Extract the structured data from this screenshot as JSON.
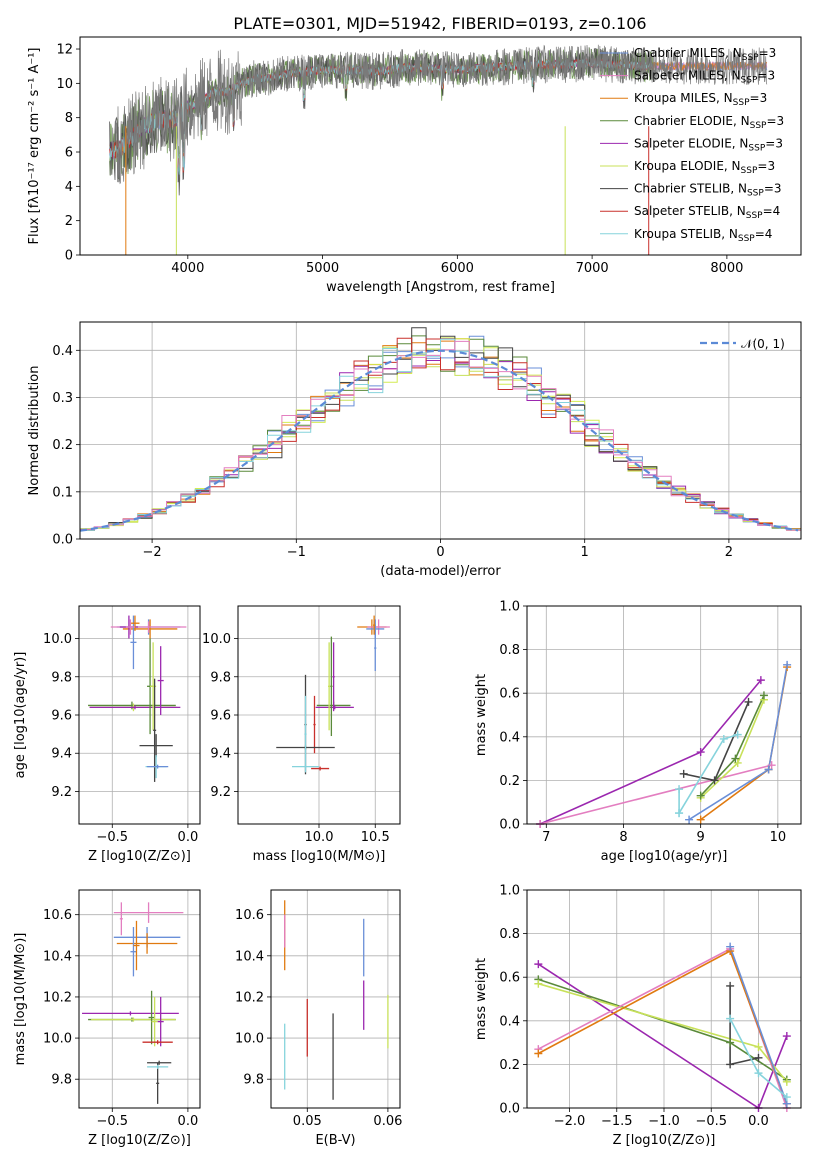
{
  "figure_title": "PLATE=0301, MJD=51942, FIBERID=0193, z=0.106",
  "colors": [
    "#6a8fd8",
    "#e07a10",
    "#c8e15a",
    "#5a8a3a",
    "#9b27af",
    "#d4ec52",
    "#444444",
    "#c9302c",
    "#86d3dc",
    "#e37ec0"
  ],
  "chart_data": [
    {
      "type": "line",
      "title": "PLATE=0301, MJD=51942, FIBERID=0193, z=0.106",
      "xlabel": "wavelength [Angstrom, rest frame]",
      "ylabel": "Flux [f_λ 10^-17 erg cm^-2 s^-1 A^-1]",
      "xlim": [
        3200,
        8550
      ],
      "ylim": [
        0,
        12.7
      ],
      "xticks": [
        "4000",
        "5000",
        "6000",
        "7000",
        "8000"
      ],
      "yticks": [
        "0",
        "2",
        "4",
        "6",
        "8",
        "10",
        "12"
      ],
      "legend": "upper right",
      "series": [
        {
          "name": "Chabrier MILES, N_SSP=3",
          "color": "#6a8fd8"
        },
        {
          "name": "Salpeter MILES, N_SSP=3",
          "color": "#e37ec0"
        },
        {
          "name": "Kroupa MILES, N_SSP=3",
          "color": "#e07a10"
        },
        {
          "name": "Chabrier ELODIE, N_SSP=3",
          "color": "#5a8a3a"
        },
        {
          "name": "Salpeter ELODIE, N_SSP=3",
          "color": "#9b27af"
        },
        {
          "name": "Kroupa ELODIE, N_SSP=3",
          "color": "#c8e15a"
        },
        {
          "name": "Chabrier STELIB, N_SSP=3",
          "color": "#444444"
        },
        {
          "name": "Salpeter STELIB, N_SSP=4",
          "color": "#c9302c"
        },
        {
          "name": "Kroupa STELIB, N_SSP=4",
          "color": "#86d3dc"
        }
      ],
      "continuum_wavelength": [
        3400,
        3500,
        3600,
        3700,
        3800,
        3900,
        4000,
        4100,
        4200,
        4300,
        4400,
        4500,
        4600,
        4700,
        4800,
        4900,
        5000,
        5200,
        5400,
        5600,
        5800,
        6000,
        6200,
        6400,
        6600,
        6800,
        7000,
        7200,
        7400
      ],
      "continuum_flux": [
        6.0,
        6.2,
        7.0,
        7.6,
        7.9,
        7.9,
        8.6,
        9.0,
        9.5,
        9.5,
        10.0,
        10.3,
        10.3,
        10.5,
        10.6,
        10.7,
        10.8,
        10.8,
        10.7,
        10.9,
        10.9,
        10.8,
        10.9,
        11.0,
        11.1,
        11.1,
        11.2,
        11.1,
        11.0
      ],
      "data_extent": [
        3380,
        8300
      ]
    },
    {
      "type": "line",
      "xlabel": "(data-model)/error",
      "ylabel": "Normed distribution",
      "xlim": [
        -2.5,
        2.5
      ],
      "ylim": [
        0,
        0.46
      ],
      "xticks": [
        "−2",
        "−1",
        "0",
        "1",
        "2"
      ],
      "yticks": [
        "0.0",
        "0.1",
        "0.2",
        "0.3",
        "0.4"
      ],
      "legend": "upper right",
      "reference_curve": {
        "name": "𝒩(0, 1)",
        "mean": 0,
        "sigma": 1,
        "color": "#5b8ad6"
      }
    },
    {
      "type": "scatter",
      "xlabel": "Z [log10(Z/Z⊙)]",
      "ylabel": "age  [log10(age/yr)]",
      "xlim": [
        -0.72,
        0.08
      ],
      "ylim": [
        9.03,
        10.17
      ],
      "xticks": [
        "−0.5",
        "0.0"
      ],
      "yticks": [
        "9.2",
        "9.4",
        "9.6",
        "9.8",
        "10.0"
      ],
      "points": [
        {
          "x": -0.26,
          "y": 10.06,
          "xerr": 0.21,
          "yerr": 0.04,
          "color": "#6a8fd8"
        },
        {
          "x": -0.25,
          "y": 10.05,
          "xerr": 0.18,
          "yerr": 0.05,
          "color": "#e07a10"
        },
        {
          "x": -0.26,
          "y": 10.06,
          "xerr": 0.25,
          "yerr": 0.03,
          "color": "#e37ec0"
        },
        {
          "x": -0.39,
          "y": 10.06,
          "xerr": 0.06,
          "yerr": 0.06,
          "color": "#9b27af"
        },
        {
          "x": -0.36,
          "y": 9.98,
          "xerr": 0.02,
          "yerr": 0.14,
          "color": "#6a8fd8"
        },
        {
          "x": -0.35,
          "y": 10.08,
          "xerr": 0.03,
          "yerr": 0.04,
          "color": "#e07a10"
        },
        {
          "x": -0.38,
          "y": 10.06,
          "xerr": 0.03,
          "yerr": 0.04,
          "color": "#e37ec0"
        },
        {
          "x": -0.37,
          "y": 9.65,
          "xerr": 0.29,
          "yerr": 0.02,
          "color": "#5a8a3a"
        },
        {
          "x": -0.36,
          "y": 9.64,
          "xerr": 0.29,
          "yerr": 0.02,
          "color": "#c8e15a"
        },
        {
          "x": -0.35,
          "y": 9.64,
          "xerr": 0.3,
          "yerr": 0.01,
          "color": "#9b27af"
        },
        {
          "x": -0.25,
          "y": 9.75,
          "xerr": 0.02,
          "yerr": 0.25,
          "color": "#5a8a3a"
        },
        {
          "x": -0.23,
          "y": 9.75,
          "xerr": 0.02,
          "yerr": 0.23,
          "color": "#c8e15a"
        },
        {
          "x": -0.18,
          "y": 9.78,
          "xerr": 0.02,
          "yerr": 0.18,
          "color": "#9b27af"
        },
        {
          "x": -0.21,
          "y": 9.44,
          "xerr": 0.11,
          "yerr": 0.06,
          "color": "#444444"
        },
        {
          "x": -0.22,
          "y": 9.52,
          "xerr": 0.01,
          "yerr": 0.27,
          "color": "#444444"
        },
        {
          "x": -0.21,
          "y": 9.33,
          "xerr": 0.07,
          "yerr": 0.06,
          "color": "#86d3dc"
        },
        {
          "x": -0.2,
          "y": 9.33,
          "xerr": 0.07,
          "yerr": 0.01,
          "color": "#6a8fd8"
        }
      ]
    },
    {
      "type": "scatter",
      "xlabel": "mass [log10(M/M⊙)]",
      "ylabel": "",
      "xlim": [
        9.28,
        10.72
      ],
      "ylim": [
        9.03,
        10.17
      ],
      "xticks": [
        "10.0",
        "10.5"
      ],
      "yticks": [
        "9.2",
        "9.4",
        "9.6",
        "9.8",
        "10.0"
      ],
      "points": [
        {
          "x": 10.47,
          "y": 10.06,
          "xerr": 0.13,
          "yerr": 0.04,
          "color": "#e07a10"
        },
        {
          "x": 10.53,
          "y": 10.06,
          "xerr": 0.1,
          "yerr": 0.04,
          "color": "#e37ec0"
        },
        {
          "x": 10.5,
          "y": 10.05,
          "xerr": 0.08,
          "yerr": 0.05,
          "color": "#6a8fd8"
        },
        {
          "x": 10.5,
          "y": 9.95,
          "xerr": 0.01,
          "yerr": 0.12,
          "color": "#6a8fd8"
        },
        {
          "x": 10.49,
          "y": 10.07,
          "xerr": 0.01,
          "yerr": 0.05,
          "color": "#e07a10"
        },
        {
          "x": 10.13,
          "y": 9.65,
          "xerr": 0.15,
          "yerr": 0.02,
          "color": "#5a8a3a"
        },
        {
          "x": 10.14,
          "y": 9.64,
          "xerr": 0.17,
          "yerr": 0.01,
          "color": "#9b27af"
        },
        {
          "x": 10.11,
          "y": 9.75,
          "xerr": 0.01,
          "yerr": 0.26,
          "color": "#5a8a3a"
        },
        {
          "x": 10.09,
          "y": 9.75,
          "xerr": 0.01,
          "yerr": 0.23,
          "color": "#c8e15a"
        },
        {
          "x": 10.13,
          "y": 9.8,
          "xerr": 0.01,
          "yerr": 0.18,
          "color": "#9b27af"
        },
        {
          "x": 9.96,
          "y": 9.55,
          "xerr": 0.01,
          "yerr": 0.15,
          "color": "#c9302c"
        },
        {
          "x": 10.01,
          "y": 9.32,
          "xerr": 0.08,
          "yerr": 0.01,
          "color": "#c9302c"
        },
        {
          "x": 9.88,
          "y": 9.43,
          "xerr": 0.26,
          "yerr": 0.01,
          "color": "#444444"
        },
        {
          "x": 9.88,
          "y": 9.55,
          "xerr": 0.01,
          "yerr": 0.26,
          "color": "#444444"
        },
        {
          "x": 9.88,
          "y": 9.33,
          "xerr": 0.12,
          "yerr": 0.01,
          "color": "#86d3dc"
        },
        {
          "x": 9.88,
          "y": 9.5,
          "xerr": 0.01,
          "yerr": 0.2,
          "color": "#86d3dc"
        }
      ]
    },
    {
      "type": "line",
      "xlabel": "age  [log10(age/yr)]",
      "ylabel": "mass weight",
      "xlim": [
        6.75,
        10.3
      ],
      "ylim": [
        0,
        1.0
      ],
      "xticks": [
        "7",
        "8",
        "9",
        "10"
      ],
      "yticks": [
        "0.0",
        "0.2",
        "0.4",
        "0.6",
        "0.8",
        "1.0"
      ],
      "series": [
        {
          "color": "#9b27af",
          "x": [
            6.92,
            9.0,
            9.78
          ],
          "y": [
            0.0,
            0.33,
            0.66
          ]
        },
        {
          "color": "#e37ec0",
          "x": [
            6.92,
            9.92
          ],
          "y": [
            0.0,
            0.27
          ]
        },
        {
          "color": "#e07a10",
          "x": [
            9.0,
            9.88,
            10.12
          ],
          "y": [
            0.02,
            0.25,
            0.72
          ]
        },
        {
          "color": "#6a8fd8",
          "x": [
            8.85,
            9.88,
            10.12
          ],
          "y": [
            0.02,
            0.25,
            0.73
          ]
        },
        {
          "color": "#c8e15a",
          "x": [
            9.0,
            9.48,
            9.82
          ],
          "y": [
            0.12,
            0.28,
            0.57
          ]
        },
        {
          "color": "#5a8a3a",
          "x": [
            9.0,
            9.45,
            9.82
          ],
          "y": [
            0.13,
            0.3,
            0.59
          ]
        },
        {
          "color": "#444444",
          "x": [
            8.78,
            9.18,
            9.62
          ],
          "y": [
            0.23,
            0.2,
            0.56
          ]
        },
        {
          "color": "#86d3dc",
          "x": [
            8.72,
            9.3,
            9.48
          ],
          "y": [
            0.05,
            0.39,
            0.41
          ]
        },
        {
          "color": "#86d3dc",
          "x": [
            8.72,
            8.72
          ],
          "y": [
            0.05,
            0.16
          ]
        }
      ]
    },
    {
      "type": "scatter",
      "xlabel": "Z [log10(Z/Z⊙)]",
      "ylabel": "mass [log10(M/M⊙)]",
      "xlim": [
        -0.72,
        0.08
      ],
      "ylim": [
        9.66,
        10.72
      ],
      "xticks": [
        "−0.5",
        "0.0"
      ],
      "yticks": [
        "9.8",
        "10.0",
        "10.2",
        "10.4",
        "10.6"
      ],
      "points": [
        {
          "x": -0.26,
          "y": 10.61,
          "xerr": 0.23,
          "yerr": 0.05,
          "color": "#e37ec0"
        },
        {
          "x": -0.27,
          "y": 10.49,
          "xerr": 0.22,
          "yerr": 0.05,
          "color": "#6a8fd8"
        },
        {
          "x": -0.27,
          "y": 10.46,
          "xerr": 0.2,
          "yerr": 0.05,
          "color": "#e07a10"
        },
        {
          "x": -0.36,
          "y": 10.42,
          "xerr": 0.02,
          "yerr": 0.12,
          "color": "#6a8fd8"
        },
        {
          "x": -0.34,
          "y": 10.45,
          "xerr": 0.02,
          "yerr": 0.12,
          "color": "#e07a10"
        },
        {
          "x": -0.44,
          "y": 10.58,
          "xerr": 0.01,
          "yerr": 0.08,
          "color": "#e37ec0"
        },
        {
          "x": -0.38,
          "y": 10.12,
          "xerr": 0.32,
          "yerr": 0.01,
          "color": "#9b27af"
        },
        {
          "x": -0.37,
          "y": 10.09,
          "xerr": 0.29,
          "yerr": 0.01,
          "color": "#5a8a3a"
        },
        {
          "x": -0.36,
          "y": 10.09,
          "xerr": 0.28,
          "yerr": 0.01,
          "color": "#c8e15a"
        },
        {
          "x": -0.24,
          "y": 10.1,
          "xerr": 0.02,
          "yerr": 0.13,
          "color": "#5a8a3a"
        },
        {
          "x": -0.22,
          "y": 10.08,
          "xerr": 0.02,
          "yerr": 0.12,
          "color": "#c8e15a"
        },
        {
          "x": -0.18,
          "y": 10.08,
          "xerr": 0.02,
          "yerr": 0.12,
          "color": "#9b27af"
        },
        {
          "x": -0.2,
          "y": 9.98,
          "xerr": 0.1,
          "yerr": 0.01,
          "color": "#c9302c"
        },
        {
          "x": -0.19,
          "y": 9.88,
          "xerr": 0.08,
          "yerr": 0.01,
          "color": "#444444"
        },
        {
          "x": -0.2,
          "y": 9.78,
          "xerr": 0.01,
          "yerr": 0.1,
          "color": "#444444"
        },
        {
          "x": -0.2,
          "y": 9.86,
          "xerr": 0.07,
          "yerr": 0.01,
          "color": "#86d3dc"
        }
      ]
    },
    {
      "type": "scatter",
      "xlabel": "E(B-V)",
      "ylabel": "",
      "xlim": [
        0.0455,
        0.0615
      ],
      "ylim": [
        9.66,
        10.72
      ],
      "xticks": [
        "0.05",
        "0.06"
      ],
      "yticks": [
        "9.8",
        "10.0",
        "10.2",
        "10.4",
        "10.6"
      ],
      "points": [
        {
          "x": 0.0472,
          "y": 10.5,
          "yerr": 0.17,
          "color": "#e07a10"
        },
        {
          "x": 0.0472,
          "y": 10.52,
          "yerr": 0.08,
          "color": "#e37ec0"
        },
        {
          "x": 0.0472,
          "y": 9.91,
          "yerr": 0.16,
          "color": "#86d3dc"
        },
        {
          "x": 0.05,
          "y": 10.05,
          "yerr": 0.14,
          "color": "#c9302c"
        },
        {
          "x": 0.0532,
          "y": 9.91,
          "yerr": 0.21,
          "color": "#444444"
        },
        {
          "x": 0.057,
          "y": 10.44,
          "yerr": 0.14,
          "color": "#6a8fd8"
        },
        {
          "x": 0.057,
          "y": 10.16,
          "yerr": 0.12,
          "color": "#9b27af"
        },
        {
          "x": 0.06,
          "y": 10.08,
          "yerr": 0.13,
          "color": "#c8e15a"
        }
      ]
    },
    {
      "type": "line",
      "xlabel": "Z [log10(Z/Z⊙)]",
      "ylabel": "mass weight",
      "xlim": [
        -2.45,
        0.45
      ],
      "ylim": [
        0,
        1.0
      ],
      "xticks": [
        "−2.0",
        "−1.5",
        "−1.0",
        "−0.5",
        "0.0"
      ],
      "yticks": [
        "0.0",
        "0.2",
        "0.4",
        "0.6",
        "0.8",
        "1.0"
      ],
      "series": [
        {
          "color": "#9b27af",
          "x": [
            -2.33,
            0.0,
            0.3
          ],
          "y": [
            0.66,
            0.0,
            0.33
          ]
        },
        {
          "color": "#5a8a3a",
          "x": [
            -2.33,
            -0.3,
            0.3
          ],
          "y": [
            0.59,
            0.3,
            0.13
          ]
        },
        {
          "color": "#c8e15a",
          "x": [
            -2.33,
            0.0,
            0.3
          ],
          "y": [
            0.57,
            0.28,
            0.12
          ]
        },
        {
          "color": "#e37ec0",
          "x": [
            -2.33,
            -0.3,
            0.3
          ],
          "y": [
            0.27,
            0.73,
            0.0
          ]
        },
        {
          "color": "#e07a10",
          "x": [
            -2.33,
            -0.3,
            0.3
          ],
          "y": [
            0.25,
            0.72,
            0.02
          ]
        },
        {
          "color": "#6a8fd8",
          "x": [
            -0.3,
            0.3
          ],
          "y": [
            0.74,
            0.02
          ]
        },
        {
          "color": "#444444",
          "x": [
            -0.3,
            -0.3,
            0.0
          ],
          "y": [
            0.56,
            0.2,
            0.23
          ]
        },
        {
          "color": "#86d3dc",
          "x": [
            -0.3,
            0.0,
            0.3
          ],
          "y": [
            0.41,
            0.16,
            0.05
          ]
        }
      ]
    }
  ]
}
